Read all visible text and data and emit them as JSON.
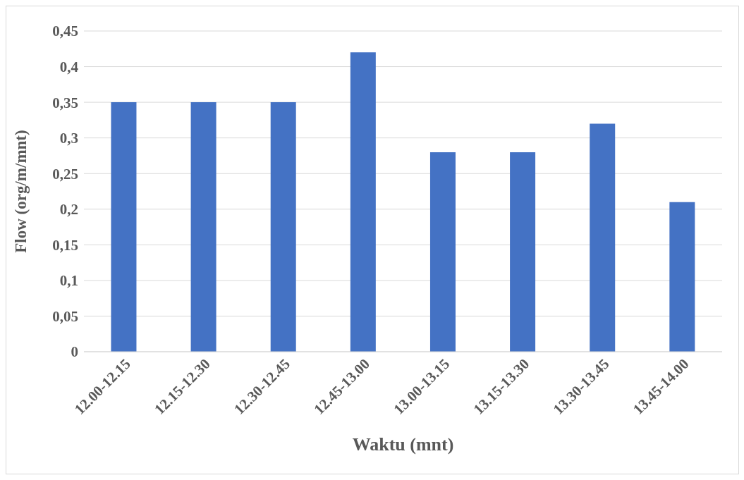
{
  "chart_data": {
    "type": "bar",
    "xlabel": "Waktu (mnt)",
    "ylabel": "Flow (org/m/mnt)",
    "categories": [
      "12.00-12.15",
      "12.15-12.30",
      "12.30-12.45",
      "12.45-13.00",
      "13.00-13.15",
      "13.15-13.30",
      "13.30-13.45",
      "13.45-14.00"
    ],
    "values": [
      0.35,
      0.35,
      0.35,
      0.42,
      0.28,
      0.28,
      0.32,
      0.21
    ],
    "color": "#4472c4",
    "ylim": [
      0,
      0.45
    ],
    "yticks": [
      0,
      {
        "value": 0.05,
        "label": "0,05"
      },
      {
        "value": 0.1,
        "label": "0,1"
      },
      {
        "value": 0.15,
        "label": "0,15"
      },
      {
        "value": 0.2,
        "label": "0,2"
      },
      {
        "value": 0.25,
        "label": "0,25"
      },
      {
        "value": 0.3,
        "label": "0,3"
      },
      {
        "value": 0.35,
        "label": "0,35"
      },
      {
        "value": 0.4,
        "label": "0,4"
      },
      {
        "value": 0.45,
        "label": "0,45"
      }
    ],
    "grid": "y",
    "legend": false
  }
}
